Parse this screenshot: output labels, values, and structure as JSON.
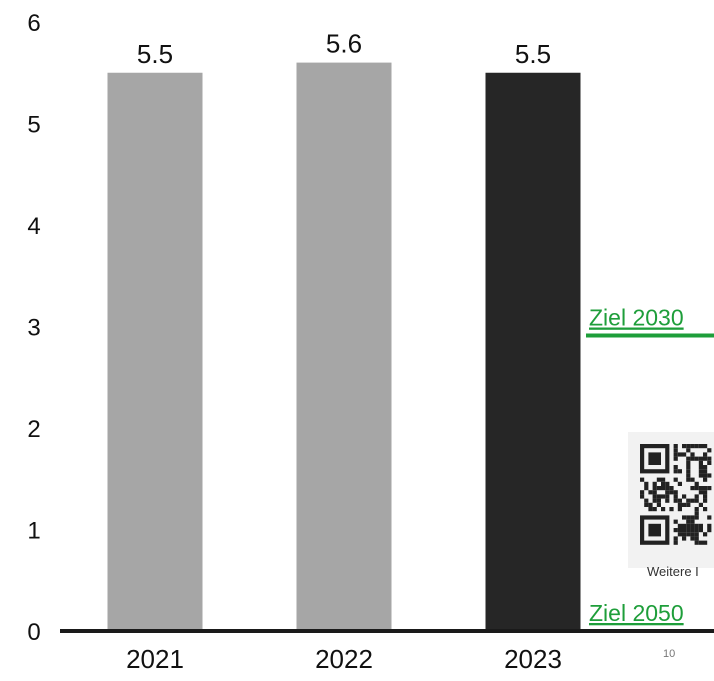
{
  "chart_data": {
    "type": "bar",
    "categories": [
      "2021",
      "2022",
      "2023"
    ],
    "values": [
      5.5,
      5.6,
      5.5
    ],
    "data_labels": [
      "5.5",
      "5.6",
      "5.5"
    ],
    "title": "",
    "xlabel": "",
    "ylabel": "",
    "ylim": [
      0,
      6
    ],
    "yticks": [
      "0",
      "1",
      "2",
      "3",
      "4",
      "5",
      "6"
    ],
    "grid": false,
    "legend": "none",
    "bar_colors": [
      "#a6a6a6",
      "#a6a6a6",
      "#262626"
    ],
    "targets": [
      {
        "label": "Ziel 2030",
        "value": 3.0,
        "color": "#1e9e3a"
      },
      {
        "label": "Ziel 2050",
        "value": 0.0,
        "color": "#1e9e3a"
      }
    ]
  },
  "qr": {
    "caption": "Weitere I",
    "icon": "qr-code-icon"
  },
  "page_number": "10"
}
